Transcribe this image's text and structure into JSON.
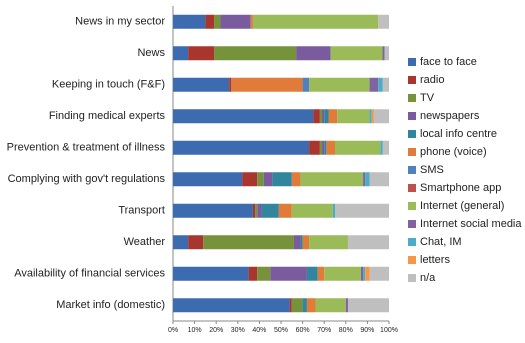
{
  "chart_data": {
    "type": "bar",
    "orientation": "horizontal",
    "stacked": true,
    "categories": [
      "News in my sector",
      "News",
      "Keeping in touch (F&F)",
      "Finding medical experts",
      "Prevention & treatment of illness",
      "Complying with gov't regulations",
      "Transport",
      "Weather",
      "Availability of financial services",
      "Market info (domestic)"
    ],
    "series": [
      {
        "name": "face to face",
        "color": "#3d6bb0",
        "values": [
          15,
          7,
          26,
          65,
          63,
          32,
          37,
          7,
          35,
          54
        ]
      },
      {
        "name": "radio",
        "color": "#a9362e",
        "values": [
          4,
          12,
          1,
          3,
          5,
          7,
          1,
          7,
          4,
          1
        ]
      },
      {
        "name": "TV",
        "color": "#76933c",
        "values": [
          3,
          38,
          0,
          1,
          1,
          3,
          1,
          42,
          6,
          5
        ]
      },
      {
        "name": "newspapers",
        "color": "#7a5c9e",
        "values": [
          14,
          16,
          0,
          1,
          1,
          4,
          2,
          3,
          17,
          0
        ]
      },
      {
        "name": "local info centre",
        "color": "#31859c",
        "values": [
          0,
          0,
          0,
          2,
          1,
          9,
          8,
          1,
          5,
          2
        ]
      },
      {
        "name": "phone (voice)",
        "color": "#e07b39",
        "values": [
          1,
          0,
          33,
          4,
          4,
          4,
          6,
          3,
          3,
          4
        ]
      },
      {
        "name": "SMS",
        "color": "#4f81bd",
        "values": [
          0,
          0,
          3,
          0,
          0,
          0,
          0,
          0,
          0,
          0
        ]
      },
      {
        "name": "Smartphone app",
        "color": "#c0504d",
        "values": [
          0,
          0,
          0,
          0,
          0,
          0,
          0,
          0,
          0,
          0
        ]
      },
      {
        "name": "Internet (general)",
        "color": "#9bbb59",
        "values": [
          58,
          24,
          28,
          15,
          21,
          29,
          19,
          18,
          17,
          14
        ]
      },
      {
        "name": "Internet social media",
        "color": "#8064a2",
        "values": [
          0,
          1,
          4,
          0,
          0,
          1,
          0,
          0,
          1,
          1
        ]
      },
      {
        "name": "Chat, IM",
        "color": "#4bacc6",
        "values": [
          0,
          0,
          2,
          1,
          1,
          2,
          1,
          0,
          1,
          0
        ]
      },
      {
        "name": "letters",
        "color": "#f79646",
        "values": [
          0,
          0,
          0,
          1,
          0,
          0,
          0,
          0,
          2,
          0
        ]
      },
      {
        "name": "n/a",
        "color": "#bfbfbf",
        "values": [
          5,
          2,
          3,
          7,
          3,
          9,
          25,
          19,
          9,
          19
        ]
      }
    ],
    "xlim": [
      0,
      100
    ],
    "xticks": [
      {
        "value": 0,
        "label": "0%"
      },
      {
        "value": 10,
        "label": "10%"
      },
      {
        "value": 20,
        "label": "20%"
      },
      {
        "value": 30,
        "label": "30%"
      },
      {
        "value": 40,
        "label": "40%"
      },
      {
        "value": 50,
        "label": "50%"
      },
      {
        "value": 60,
        "label": "60%"
      },
      {
        "value": 70,
        "label": "70%"
      },
      {
        "value": 80,
        "label": "80%"
      },
      {
        "value": 90,
        "label": "90%"
      },
      {
        "value": 100,
        "label": "100%"
      }
    ],
    "legend": "right"
  }
}
